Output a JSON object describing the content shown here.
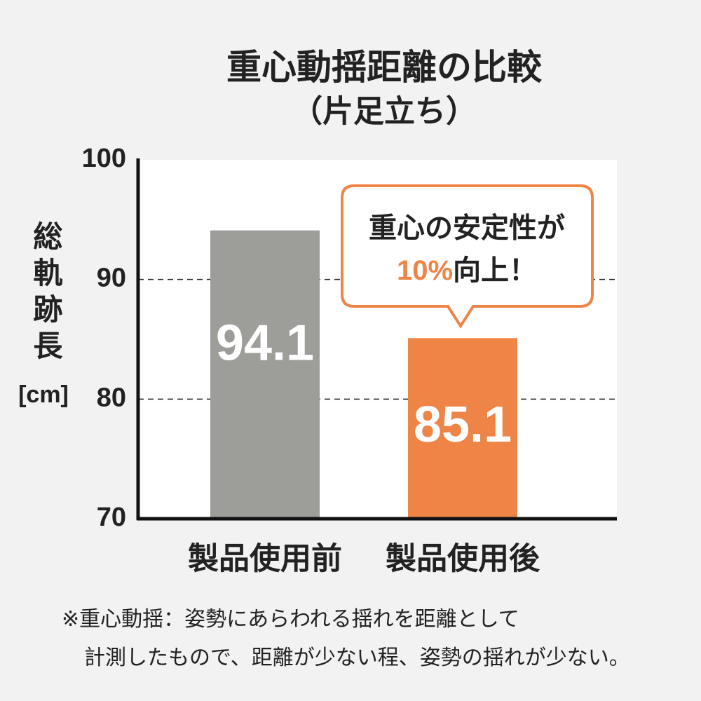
{
  "chart_data": {
    "type": "bar",
    "title": "重心動揺距離の比較",
    "subtitle": "（片足立ち）",
    "y_label": "総軌跡長",
    "y_unit": "[cm]",
    "categories": [
      "製品使用前",
      "製品使用後"
    ],
    "values": [
      94.1,
      85.1
    ],
    "colors": [
      "#9d9e9a",
      "#ef8447"
    ],
    "ylim": [
      70,
      100
    ],
    "yticks": [
      70,
      80,
      90,
      100
    ],
    "grid": "dashed",
    "annotation": {
      "line1": "重心の安定性が",
      "highlight": "10%",
      "rest": "向上！"
    },
    "footnote": [
      "※重心動揺：姿勢にあらわれる揺れを距離として",
      "計測したもので、距離が少ない程、姿勢の揺れが少ない。"
    ]
  }
}
